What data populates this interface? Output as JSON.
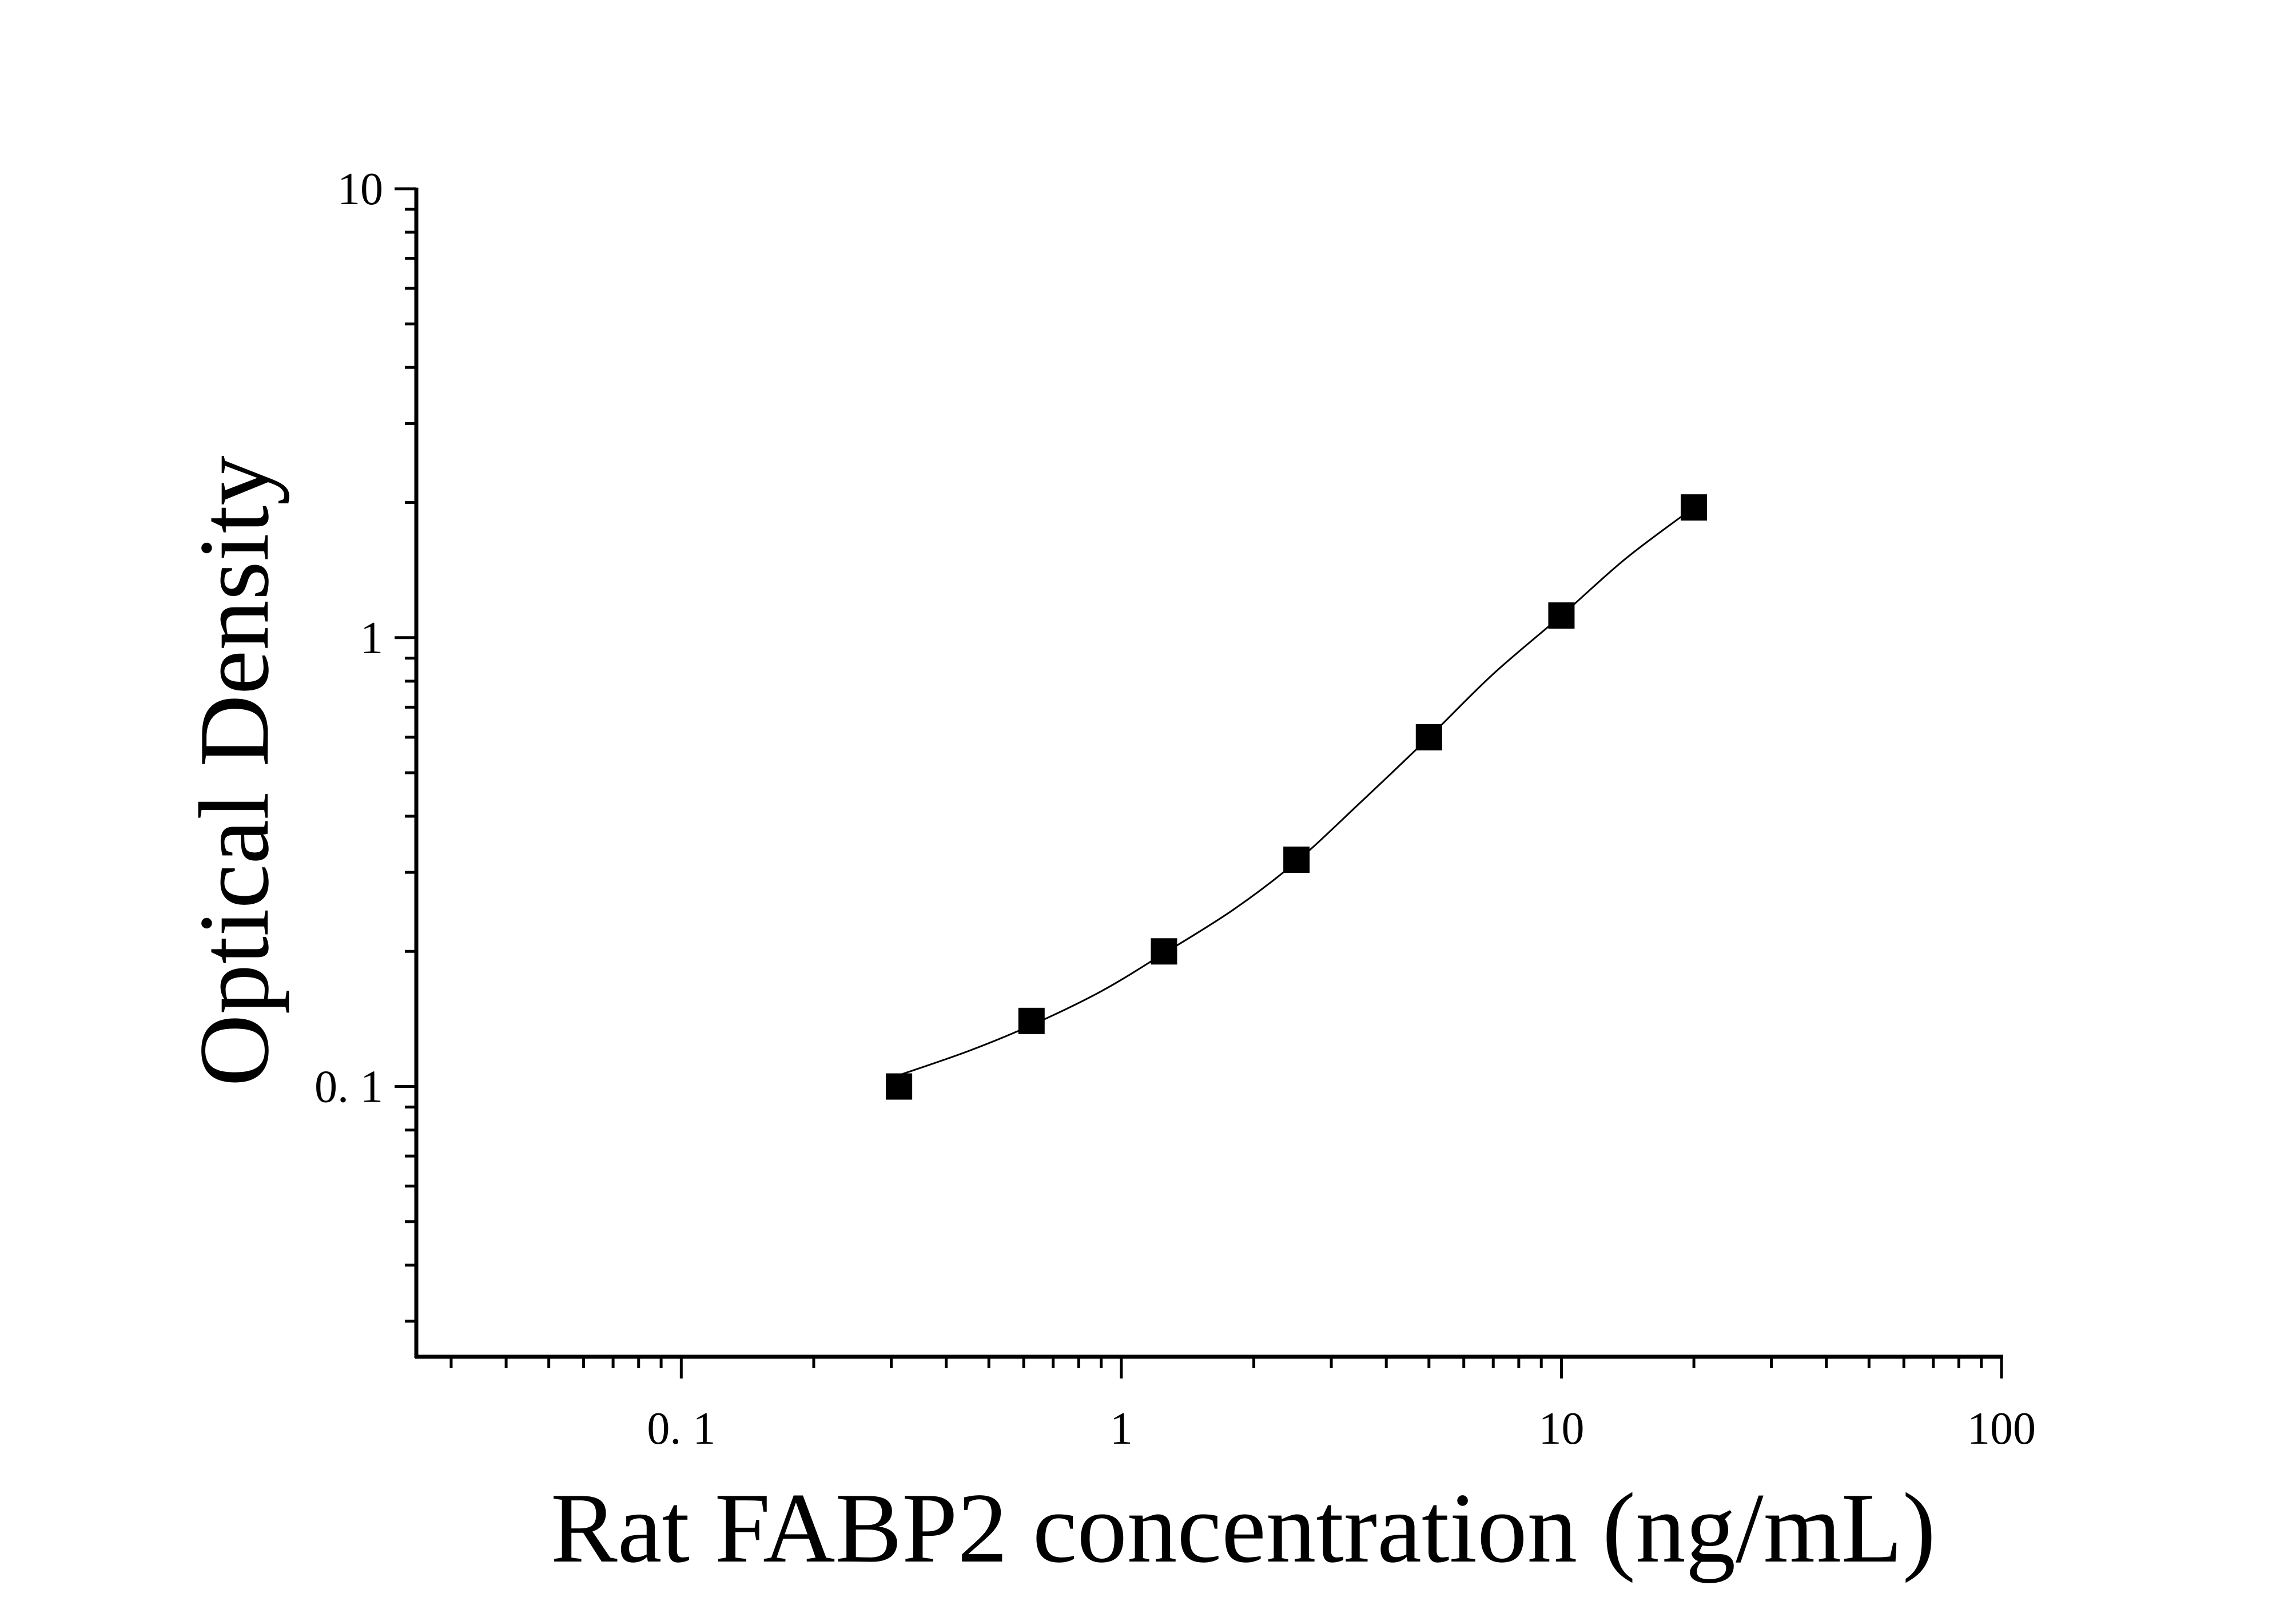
{
  "chart_data": {
    "type": "scatter",
    "xlabel": "Rat FABP2 concentration (ng/mL)",
    "ylabel": "Optical Density",
    "x_scale": "log",
    "y_scale": "log",
    "xlim": [
      0.025,
      100
    ],
    "ylim": [
      0.025,
      10
    ],
    "x_ticks": [
      0.1,
      1,
      10,
      100
    ],
    "x_tick_labels": [
      "0. 1",
      "1",
      "10",
      "100"
    ],
    "y_ticks": [
      0.1,
      1,
      10
    ],
    "y_tick_labels": [
      "0. 1",
      "1",
      "10"
    ],
    "grid": false,
    "legend": false,
    "marker": "square",
    "marker_color": "#000000",
    "line_color": "#000000",
    "series": [
      {
        "x": [
          0.3125,
          0.625,
          1.25,
          2.5,
          5,
          10,
          20
        ],
        "y": [
          0.1,
          0.14,
          0.2,
          0.32,
          0.6,
          1.12,
          1.95
        ]
      }
    ],
    "fit_curve": {
      "type": "smooth",
      "x": [
        0.3125,
        0.45,
        0.625,
        0.9,
        1.25,
        1.8,
        2.5,
        3.5,
        5,
        7,
        10,
        14,
        20
      ],
      "y": [
        0.106,
        0.12,
        0.137,
        0.163,
        0.198,
        0.248,
        0.317,
        0.43,
        0.6,
        0.83,
        1.12,
        1.5,
        1.95
      ]
    }
  }
}
